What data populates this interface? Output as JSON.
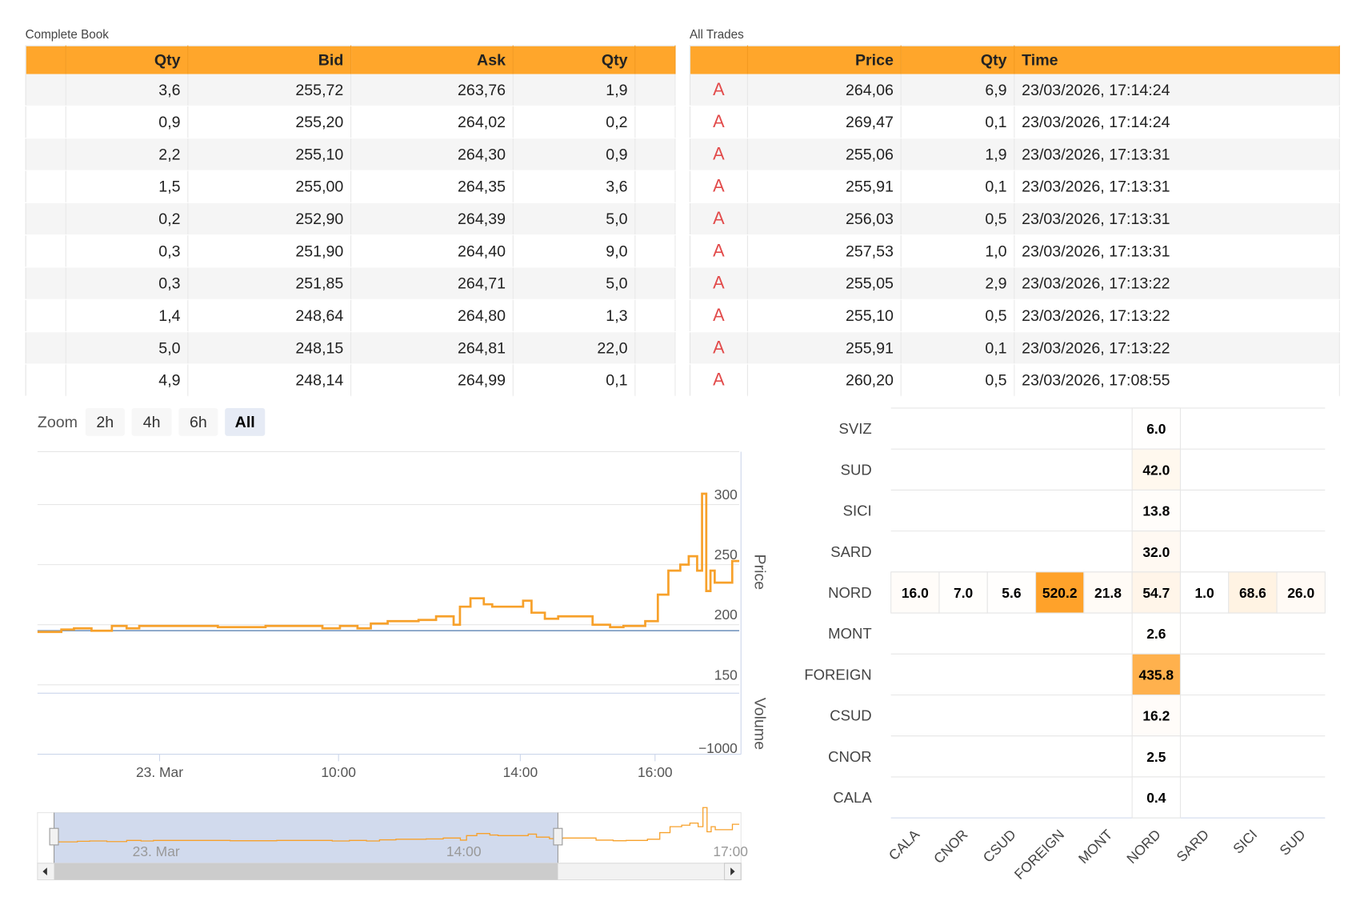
{
  "complete_book": {
    "title": "Complete Book",
    "columns": [
      "Qty",
      "Bid",
      "Ask",
      "Qty"
    ],
    "rows": [
      [
        "3,6",
        "255,72",
        "263,76",
        "1,9"
      ],
      [
        "0,9",
        "255,20",
        "264,02",
        "0,2"
      ],
      [
        "2,2",
        "255,10",
        "264,30",
        "0,9"
      ],
      [
        "1,5",
        "255,00",
        "264,35",
        "3,6"
      ],
      [
        "0,2",
        "252,90",
        "264,39",
        "5,0"
      ],
      [
        "0,3",
        "251,90",
        "264,40",
        "9,0"
      ],
      [
        "0,3",
        "251,85",
        "264,71",
        "5,0"
      ],
      [
        "1,4",
        "248,64",
        "264,80",
        "1,3"
      ],
      [
        "5,0",
        "248,15",
        "264,81",
        "22,0"
      ],
      [
        "4,9",
        "248,14",
        "264,99",
        "0,1"
      ]
    ]
  },
  "all_trades": {
    "title": "All Trades",
    "columns": [
      "Price",
      "Qty",
      "Time"
    ],
    "rows": [
      [
        "A",
        "264,06",
        "6,9",
        "23/03/2026, 17:14:24"
      ],
      [
        "A",
        "269,47",
        "0,1",
        "23/03/2026, 17:14:24"
      ],
      [
        "A",
        "255,06",
        "1,9",
        "23/03/2026, 17:13:31"
      ],
      [
        "A",
        "255,91",
        "0,1",
        "23/03/2026, 17:13:31"
      ],
      [
        "A",
        "256,03",
        "0,5",
        "23/03/2026, 17:13:31"
      ],
      [
        "A",
        "257,53",
        "1,0",
        "23/03/2026, 17:13:31"
      ],
      [
        "A",
        "255,05",
        "2,9",
        "23/03/2026, 17:13:22"
      ],
      [
        "A",
        "255,10",
        "0,5",
        "23/03/2026, 17:13:22"
      ],
      [
        "A",
        "255,91",
        "0,1",
        "23/03/2026, 17:13:22"
      ],
      [
        "A",
        "260,20",
        "0,5",
        "23/03/2026, 17:08:55"
      ]
    ]
  },
  "zoom": {
    "label": "Zoom",
    "buttons": [
      "2h",
      "4h",
      "6h",
      "All"
    ],
    "selected": 3
  },
  "price_chart": {
    "type": "line",
    "step": true,
    "color": "#f7a12b",
    "y_axis_label": "Price",
    "y2_axis_label": "Volume",
    "x": [
      0,
      3.4,
      5.2,
      7.7,
      10.6,
      12.7,
      14.5,
      25.7,
      32.5,
      40.6,
      43.1,
      45.6,
      47.5,
      49.9,
      54.3,
      56.8,
      59.3,
      60.2,
      61.7,
      63.6,
      64.8,
      69.2,
      70.4,
      72.3,
      74.2,
      79.1,
      81.6,
      83.5,
      86.6,
      88.4,
      89.9,
      91.6,
      92.8,
      94.0,
      94.7,
      95.3,
      95.9,
      96.5,
      99.0,
      100
    ],
    "values": [
      194,
      196,
      197,
      195,
      199,
      197,
      199,
      198,
      199,
      197,
      199,
      197,
      201,
      203,
      204,
      207,
      200,
      215,
      222,
      217,
      215,
      220,
      210,
      205,
      207,
      200,
      198,
      199,
      203,
      225,
      245,
      250,
      257,
      245,
      309,
      228,
      245,
      235,
      253,
      253
    ],
    "xlim": [
      0,
      100
    ],
    "xticks": [
      {
        "value": 17.4,
        "label": "23. Mar"
      },
      {
        "value": 42.9,
        "label": "10:00"
      },
      {
        "value": 68.8,
        "label": "14:00"
      },
      {
        "value": 88.0,
        "label": "16:00"
      }
    ],
    "ylim": [
      143,
      344
    ],
    "yticks": [
      150,
      200,
      250,
      300
    ],
    "plot_line": 195,
    "plot_line_color": "#7798bf",
    "y2lim": [
      -1200,
      1000
    ],
    "y2ticks": [
      {
        "value": -1000,
        "label": "−1000"
      }
    ],
    "navigator_labels": [
      "23. Mar",
      "14:00",
      "17:00"
    ]
  },
  "heatmap": {
    "type": "heatmap",
    "x_categories": [
      "CALA",
      "CNOR",
      "CSUD",
      "FOREIGN",
      "MONT",
      "NORD",
      "SARD",
      "SICI",
      "SUD"
    ],
    "y_categories": [
      "SVIZ",
      "SUD",
      "SICI",
      "SARD",
      "NORD",
      "MONT",
      "FOREIGN",
      "CSUD",
      "CNOR",
      "CALA"
    ],
    "points": [
      [
        5,
        0
      ],
      [
        5,
        1
      ],
      [
        5,
        2
      ],
      [
        5,
        3
      ],
      [
        0,
        4
      ],
      [
        1,
        4
      ],
      [
        2,
        4
      ],
      [
        3,
        4
      ],
      [
        4,
        4
      ],
      [
        5,
        4
      ],
      [
        6,
        4
      ],
      [
        7,
        4
      ],
      [
        8,
        4
      ],
      [
        5,
        5
      ],
      [
        5,
        6
      ],
      [
        5,
        7
      ],
      [
        5,
        8
      ],
      [
        5,
        9
      ]
    ],
    "values": [
      6.0,
      42.0,
      13.8,
      32.0,
      16.0,
      7.0,
      5.6,
      520.2,
      21.8,
      54.7,
      1.0,
      68.6,
      26.0,
      2.6,
      435.8,
      16.2,
      2.5,
      0.4
    ],
    "value_labels": [
      "6.0",
      "42.0",
      "13.8",
      "32.0",
      "16.0",
      "7.0",
      "5.6",
      "520.2",
      "21.8",
      "54.7",
      "1.0",
      "68.6",
      "26.0",
      "2.6",
      "435.8",
      "16.2",
      "2.5",
      "0.4"
    ],
    "color_min": "#ffffff",
    "color_max": "#ffa22a"
  }
}
